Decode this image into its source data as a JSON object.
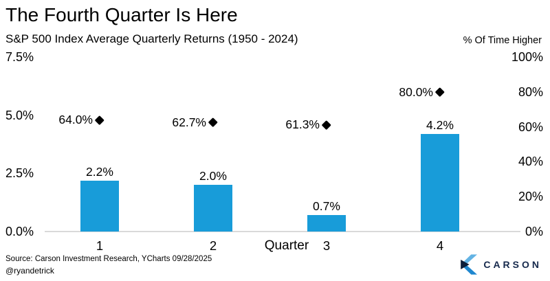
{
  "chart_data": {
    "type": "bar",
    "title": "The Fourth Quarter Is Here",
    "subtitle": "S&P 500 Index Average Quarterly Returns (1950 - 2024)",
    "xlabel": "Quarter",
    "categories": [
      "1",
      "2",
      "3",
      "4"
    ],
    "series": [
      {
        "name": "Average quarterly return",
        "type": "bar",
        "axis": "left",
        "color": "#189cd9",
        "values": [
          2.2,
          2.0,
          0.7,
          4.2
        ],
        "labels": [
          "2.2%",
          "2.0%",
          "0.7%",
          "4.2%"
        ]
      },
      {
        "name": "% of time higher",
        "type": "scatter",
        "marker": "diamond",
        "axis": "right",
        "color": "#000000",
        "values": [
          64.0,
          62.7,
          61.3,
          80.0
        ],
        "labels": [
          "64.0%",
          "62.7%",
          "61.3%",
          "80.0%"
        ]
      }
    ],
    "left_axis": {
      "min": 0,
      "max": 7.5,
      "ticks": [
        {
          "label": "0.0%",
          "value": 0
        },
        {
          "label": "2.5%",
          "value": 2.5
        },
        {
          "label": "5.0%",
          "value": 5.0
        },
        {
          "label": "7.5%",
          "value": 7.5
        }
      ]
    },
    "right_axis": {
      "title": "% Of Time Higher",
      "min": 0,
      "max": 100,
      "ticks": [
        {
          "label": "0%",
          "value": 0
        },
        {
          "label": "20%",
          "value": 20
        },
        {
          "label": "40%",
          "value": 40
        },
        {
          "label": "60%",
          "value": 60
        },
        {
          "label": "80%",
          "value": 80
        },
        {
          "label": "100%",
          "value": 100
        }
      ]
    },
    "grid": false,
    "baseline_color": "#d9d9d9"
  },
  "footer": {
    "source": "Source: Carson Investment Research, YCharts 09/28/2025",
    "handle": "@ryandetrick",
    "logo_text": "CARSON",
    "logo_colors": {
      "light_blue": "#63b3e4",
      "mid_blue": "#1f87cf",
      "dark_navy": "#0c1e3a",
      "text_navy": "#16294c"
    }
  }
}
